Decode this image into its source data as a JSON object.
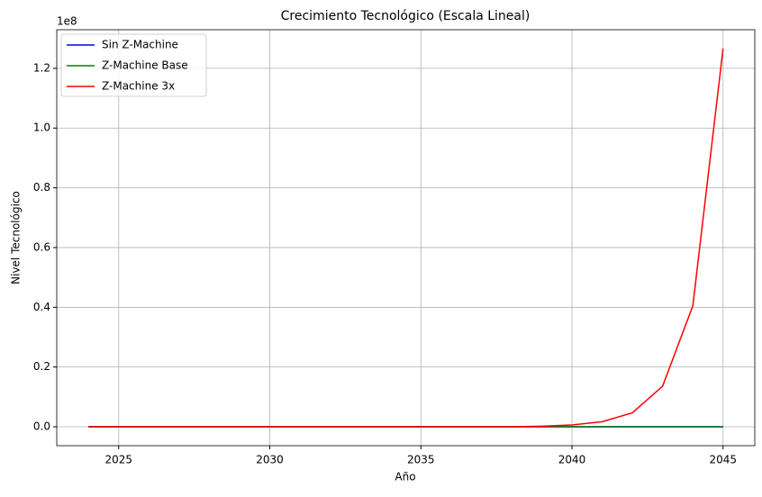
{
  "chart_data": {
    "type": "line",
    "title": "Crecimiento Tecnológico (Escala Lineal)",
    "x_label": "Año",
    "y_label": "Nivel Tecnológico",
    "y_offset_label": "1e8",
    "x": [
      2024,
      2025,
      2026,
      2027,
      2028,
      2029,
      2030,
      2031,
      2032,
      2033,
      2034,
      2035,
      2036,
      2037,
      2038,
      2039,
      2040,
      2041,
      2042,
      2043,
      2044,
      2045
    ],
    "series": [
      {
        "name": "Sin Z-Machine",
        "color": "#0000ff",
        "values": [
          0,
          0,
          0,
          0,
          0,
          0,
          0,
          0,
          0,
          0,
          0,
          0,
          0,
          0,
          0,
          0,
          0,
          0,
          0,
          0,
          0,
          0
        ]
      },
      {
        "name": "Z-Machine Base",
        "color": "#008000",
        "values": [
          0,
          0,
          0,
          0,
          0,
          0,
          0,
          0,
          0,
          0,
          0,
          0,
          0,
          0,
          0,
          0,
          0,
          0,
          0,
          0,
          0,
          0
        ]
      },
      {
        "name": "Z-Machine 3x",
        "color": "#ff0000",
        "values": [
          0,
          0,
          0,
          0,
          0,
          0,
          0,
          0,
          0,
          0,
          0,
          0,
          0,
          0,
          0,
          200000,
          600000,
          1700000,
          4700000,
          13600000,
          40500000,
          126600000
        ]
      }
    ],
    "xlim": [
      2022.95,
      2046.05
    ],
    "xticks": [
      2025,
      2030,
      2035,
      2040,
      2045
    ],
    "ylim": [
      -6330000,
      132930000
    ],
    "yticks": [
      {
        "value": 0,
        "label": "0.0"
      },
      {
        "value": 20000000,
        "label": "0.2"
      },
      {
        "value": 40000000,
        "label": "0.4"
      },
      {
        "value": 60000000,
        "label": "0.6"
      },
      {
        "value": 80000000,
        "label": "0.8"
      },
      {
        "value": 100000000,
        "label": "1.0"
      },
      {
        "value": 120000000,
        "label": "1.2"
      }
    ],
    "grid": true,
    "legend": "upper-left"
  }
}
